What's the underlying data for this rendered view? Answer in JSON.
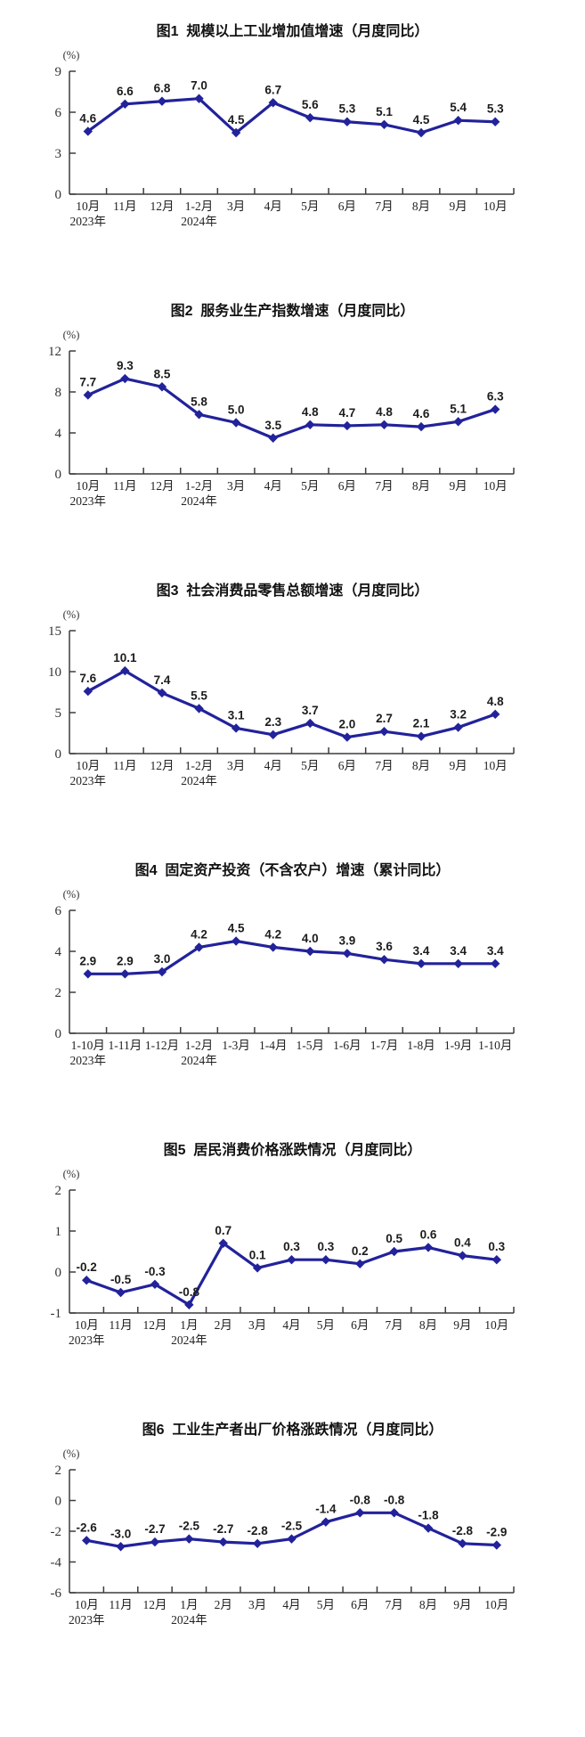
{
  "page": {
    "background_color": "#ffffff"
  },
  "chart_data": [
    {
      "type": "line",
      "title": "图1  规模以上工业增加值增速（月度同比）",
      "unit": "(%)",
      "line_color": "#22229B",
      "ylim": [
        0,
        9
      ],
      "yticks": [
        0,
        3,
        6,
        9
      ],
      "categories": [
        "10月",
        "11月",
        "12月",
        "1-2月",
        "3月",
        "4月",
        "5月",
        "6月",
        "7月",
        "8月",
        "9月",
        "10月"
      ],
      "values": [
        4.6,
        6.6,
        6.8,
        7.0,
        4.5,
        6.7,
        5.6,
        5.3,
        5.1,
        4.5,
        5.4,
        5.3
      ],
      "year_labels": [
        {
          "index": 0,
          "label": "2023年"
        },
        {
          "index": 3,
          "label": "2024年"
        }
      ]
    },
    {
      "type": "line",
      "title": "图2  服务业生产指数增速（月度同比）",
      "unit": "(%)",
      "line_color": "#22229B",
      "ylim": [
        0,
        12
      ],
      "yticks": [
        0,
        4,
        8,
        12
      ],
      "categories": [
        "10月",
        "11月",
        "12月",
        "1-2月",
        "3月",
        "4月",
        "5月",
        "6月",
        "7月",
        "8月",
        "9月",
        "10月"
      ],
      "values": [
        7.7,
        9.3,
        8.5,
        5.8,
        5.0,
        3.5,
        4.8,
        4.7,
        4.8,
        4.6,
        5.1,
        6.3
      ],
      "year_labels": [
        {
          "index": 0,
          "label": "2023年"
        },
        {
          "index": 3,
          "label": "2024年"
        }
      ]
    },
    {
      "type": "line",
      "title": "图3  社会消费品零售总额增速（月度同比）",
      "unit": "(%)",
      "line_color": "#22229B",
      "ylim": [
        0,
        15
      ],
      "yticks": [
        0,
        5,
        10,
        15
      ],
      "categories": [
        "10月",
        "11月",
        "12月",
        "1-2月",
        "3月",
        "4月",
        "5月",
        "6月",
        "7月",
        "8月",
        "9月",
        "10月"
      ],
      "values": [
        7.6,
        10.1,
        7.4,
        5.5,
        3.1,
        2.3,
        3.7,
        2.0,
        2.7,
        2.1,
        3.2,
        4.8
      ],
      "year_labels": [
        {
          "index": 0,
          "label": "2023年"
        },
        {
          "index": 3,
          "label": "2024年"
        }
      ]
    },
    {
      "type": "line",
      "title": "图4  固定资产投资（不含农户）增速（累计同比）",
      "unit": "(%)",
      "line_color": "#22229B",
      "ylim": [
        0,
        6
      ],
      "yticks": [
        0,
        2,
        4,
        6
      ],
      "categories": [
        "1-10月",
        "1-11月",
        "1-12月",
        "1-2月",
        "1-3月",
        "1-4月",
        "1-5月",
        "1-6月",
        "1-7月",
        "1-8月",
        "1-9月",
        "1-10月"
      ],
      "values": [
        2.9,
        2.9,
        3.0,
        4.2,
        4.5,
        4.2,
        4.0,
        3.9,
        3.6,
        3.4,
        3.4,
        3.4
      ],
      "year_labels": [
        {
          "index": 0,
          "label": "2023年"
        },
        {
          "index": 3,
          "label": "2024年"
        }
      ]
    },
    {
      "type": "line",
      "title": "图5  居民消费价格涨跌情况（月度同比）",
      "unit": "(%)",
      "line_color": "#22229B",
      "ylim": [
        -1,
        2
      ],
      "yticks": [
        -1,
        0,
        1,
        2
      ],
      "categories": [
        "10月",
        "11月",
        "12月",
        "1月",
        "2月",
        "3月",
        "4月",
        "5月",
        "6月",
        "7月",
        "8月",
        "9月",
        "10月"
      ],
      "values": [
        -0.2,
        -0.5,
        -0.3,
        -0.8,
        0.7,
        0.1,
        0.3,
        0.3,
        0.2,
        0.5,
        0.6,
        0.4,
        0.3
      ],
      "year_labels": [
        {
          "index": 0,
          "label": "2023年"
        },
        {
          "index": 3,
          "label": "2024年"
        }
      ]
    },
    {
      "type": "line",
      "title": "图6  工业生产者出厂价格涨跌情况（月度同比）",
      "unit": "(%)",
      "line_color": "#22229B",
      "ylim": [
        -6,
        2
      ],
      "yticks": [
        -6,
        -4,
        -2,
        0,
        2
      ],
      "categories": [
        "10月",
        "11月",
        "12月",
        "1月",
        "2月",
        "3月",
        "4月",
        "5月",
        "6月",
        "7月",
        "8月",
        "9月",
        "10月"
      ],
      "values": [
        -2.6,
        -3.0,
        -2.7,
        -2.5,
        -2.7,
        -2.8,
        -2.5,
        -1.4,
        -0.8,
        -0.8,
        -1.8,
        -2.8,
        -2.9
      ],
      "year_labels": [
        {
          "index": 0,
          "label": "2023年"
        },
        {
          "index": 3,
          "label": "2024年"
        }
      ]
    }
  ]
}
